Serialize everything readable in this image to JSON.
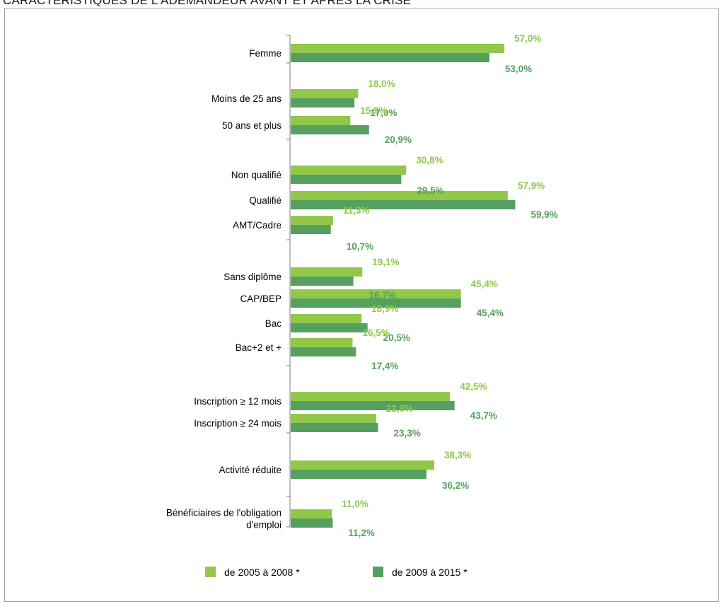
{
  "page": {
    "title": "CARACTÉRISTIQUES DE L'ADEMANDEUR AVANT ET APRÈS LA CRISE"
  },
  "chart_data": {
    "type": "bar",
    "orientation": "horizontal",
    "title": "",
    "xlabel": "",
    "ylabel": "",
    "value_format": "percent_comma_1dp",
    "categories": [
      [
        "Femme"
      ],
      [
        "Moins de 25 ans"
      ],
      [
        "50 ans et plus"
      ],
      [
        "Non qualifié"
      ],
      [
        "Qualifié"
      ],
      [
        "AMT/Cadre"
      ],
      [
        "Sans diplôme"
      ],
      [
        "CAP/BEP"
      ],
      [
        "Bac"
      ],
      [
        "Bac+2 et +"
      ],
      [
        "Inscription ≥ 12 mois"
      ],
      [
        "Inscription ≥ 24 mois"
      ],
      [
        "Activité réduite"
      ],
      [
        "Bénéficiaires de l'obligation",
        "d'emploi"
      ]
    ],
    "groups": [
      [
        0
      ],
      [
        1,
        2
      ],
      [
        3,
        4,
        5
      ],
      [
        6,
        7,
        8,
        9
      ],
      [
        10,
        11
      ],
      [
        12
      ],
      [
        13
      ]
    ],
    "series": [
      {
        "name": "de 2005 à 2008 *",
        "color": "#92c74a",
        "values": [
          57.0,
          18.0,
          15.9,
          30.8,
          57.9,
          11.3,
          19.1,
          45.4,
          18.9,
          16.5,
          42.5,
          22.8,
          38.3,
          11.0
        ]
      },
      {
        "name": "de 2009 à 2015 *",
        "color": "#55a05e",
        "values": [
          53.0,
          17.0,
          20.9,
          29.5,
          59.9,
          10.7,
          16.7,
          45.4,
          20.5,
          17.4,
          43.7,
          23.3,
          36.2,
          11.2
        ]
      }
    ],
    "xlim": [
      0,
      60
    ],
    "grid": false,
    "legend_position": "bottom"
  }
}
